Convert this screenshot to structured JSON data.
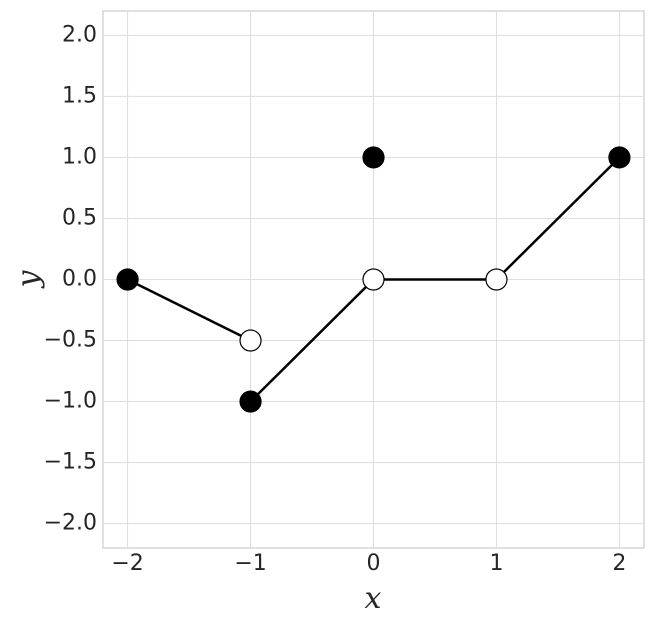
{
  "chart_data": {
    "type": "line",
    "xlabel": "x",
    "ylabel": "y",
    "xlim": [
      -2.2,
      2.2
    ],
    "ylim": [
      -2.2,
      2.2
    ],
    "xticks": [
      {
        "value": -2,
        "label": "−2"
      },
      {
        "value": -1,
        "label": "−1"
      },
      0,
      1,
      2
    ],
    "yticks": [
      {
        "value": -2,
        "label": "−2.0"
      },
      {
        "value": -1.5,
        "label": "−1.5"
      },
      {
        "value": -1,
        "label": "−1.0"
      },
      {
        "value": -0.5,
        "label": "−0.5"
      },
      {
        "value": 0,
        "label": "0.0"
      },
      0.5,
      {
        "value": 1,
        "label": "1.0"
      },
      1.5,
      {
        "value": 2,
        "label": "2.0"
      }
    ],
    "grid": true,
    "series": [
      {
        "kind": "line",
        "color": "#000000",
        "x": [
          -2,
          -1,
          null,
          -1,
          0,
          1,
          2
        ],
        "values": [
          0,
          -0.5,
          null,
          -1,
          0,
          0,
          1
        ]
      },
      {
        "kind": "marker",
        "color": "#000000",
        "fill": "#000000",
        "x": [
          -2,
          -1,
          0,
          2
        ],
        "values": [
          0,
          -1,
          1,
          1
        ]
      },
      {
        "kind": "marker",
        "color": "#000000",
        "fill": "#ffffff",
        "x": [
          -1,
          0,
          1
        ],
        "values": [
          -0.5,
          0,
          0
        ]
      }
    ]
  }
}
